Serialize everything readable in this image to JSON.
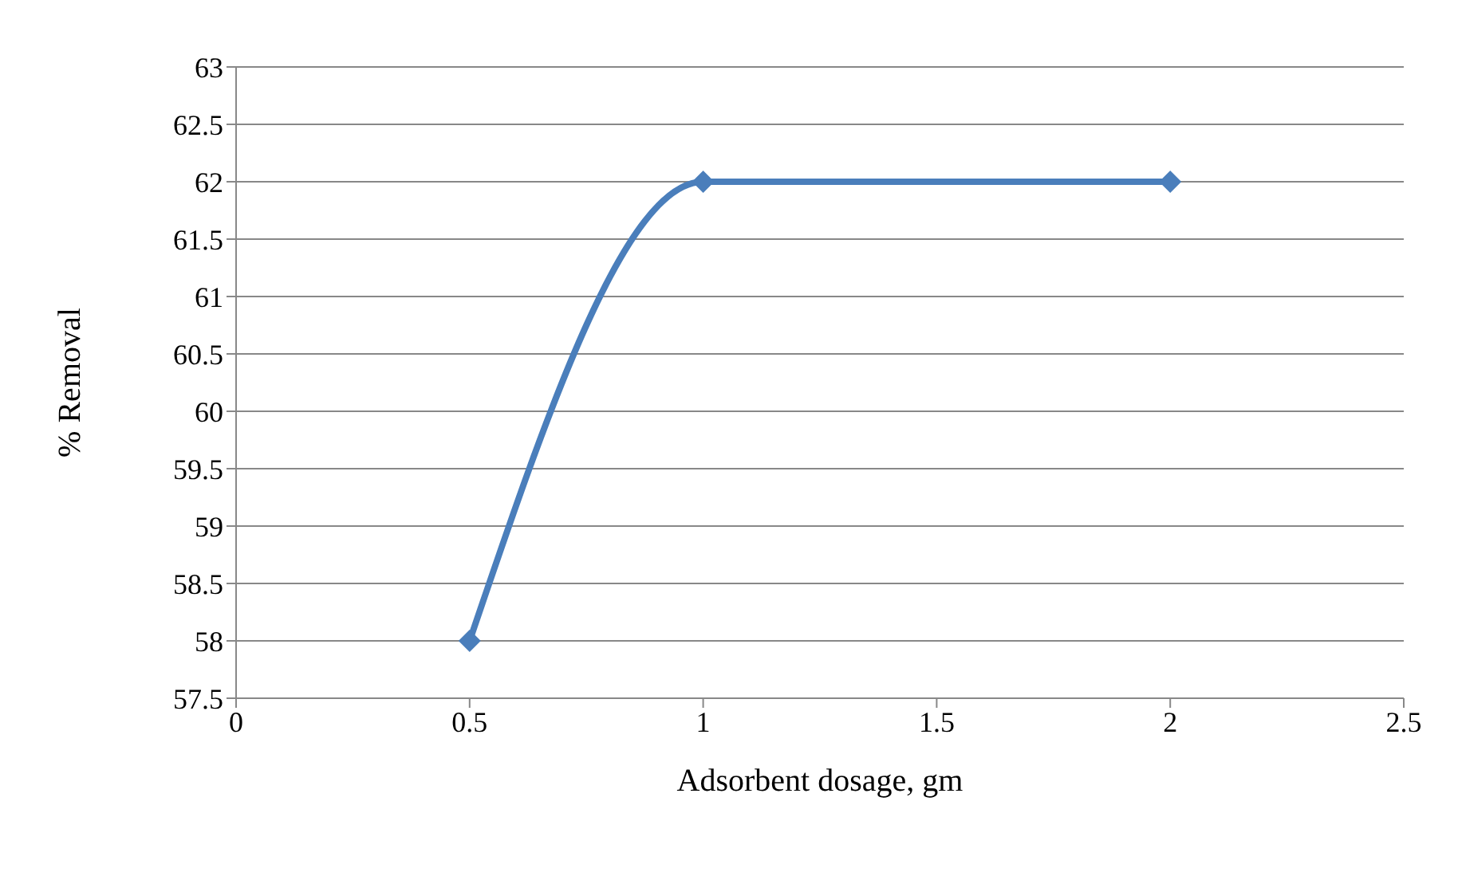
{
  "chart_data": {
    "type": "line",
    "xlabel": "Adsorbent dosage, gm",
    "ylabel": "% Removal",
    "x": [
      0.5,
      1,
      2
    ],
    "series": [
      {
        "color": "#4a7ebb",
        "values": [
          58,
          62,
          62
        ]
      }
    ],
    "xlim": [
      0,
      2.5
    ],
    "xticks": [
      0,
      0.5,
      1,
      1.5,
      2,
      2.5
    ],
    "ylim": [
      57.5,
      63
    ],
    "yticks": [
      57.5,
      58,
      58.5,
      59,
      59.5,
      60,
      60.5,
      61,
      61.5,
      62,
      62.5,
      63
    ],
    "grid": "y",
    "legend": false,
    "marker": "diamond",
    "line_style": "solid"
  }
}
